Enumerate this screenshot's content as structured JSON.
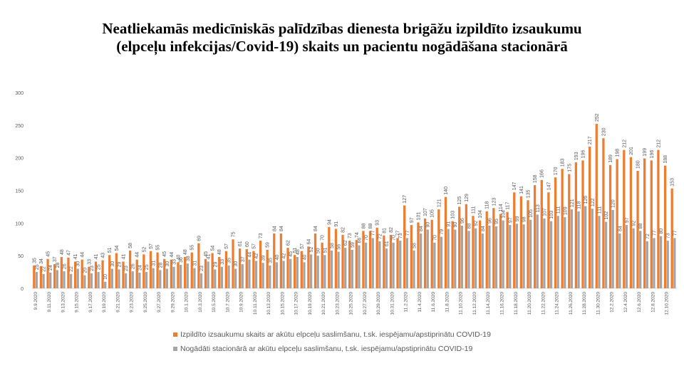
{
  "chart_data": {
    "type": "bar",
    "title": [
      "Neatliekamās medicīniskās palīdzības dienesta brigāžu izpildīto izsaukumu",
      "(elpceļu infekcijas/Covid-19) skaits un pacientu nogādāšana stacionārā"
    ],
    "categories": [
      "9.9.2020",
      null,
      "9.11.2020",
      null,
      "9.13.2020",
      null,
      "9.15.2020",
      null,
      "9.17.2020",
      null,
      "9.19.2020",
      null,
      "9.21.2020",
      null,
      "9.23.2020",
      null,
      "9.25.2020",
      null,
      "9.27.2020",
      null,
      "9.29.2020",
      null,
      "10.1.2020",
      null,
      "10.3.2020",
      null,
      "10.5.2020",
      null,
      "10.7.2020",
      null,
      "10.9.2020",
      null,
      "10.11.2020",
      null,
      "10.13.2020",
      null,
      "10.15.2020",
      null,
      "10.17.2020",
      null,
      "10.19.2020",
      null,
      "10.21.2020",
      null,
      "10.23.2020",
      null,
      "10.25.2020",
      null,
      "10.27.2020",
      null,
      "10.29.2020",
      null,
      "10.31.2020",
      null,
      "11.2.2020",
      null,
      "11.4.2020",
      null,
      "11.6.2020",
      null,
      "11.8.2020",
      null,
      "11.10.2020",
      null,
      "11.12.2020",
      null,
      "11.14.2020",
      null,
      "11.16.2020",
      null,
      "11.18.2020",
      null,
      "11.20.2020",
      null,
      "11.22.2020",
      null,
      "11.24.2020",
      null,
      "11.26.2020",
      null,
      "11.28.2020",
      null,
      "11.30.2020",
      null,
      "12.2.2020",
      null,
      "12.4.2020",
      null,
      "12.6.2020",
      null,
      "12.8.2020",
      null,
      "12.10.2020",
      null
    ],
    "series": [
      {
        "name": "Izpildīto izsaukumu skaits ar akūtu elpceļu saslimšanu, t.sk. iespējamu/apstiprinātu COVID-19",
        "color": "#ed7d31",
        "values": [
          35,
          34,
          45,
          37,
          48,
          47,
          41,
          44,
          33,
          41,
          43,
          51,
          54,
          41,
          58,
          44,
          52,
          57,
          55,
          45,
          44,
          40,
          48,
          55,
          69,
          45,
          54,
          48,
          57,
          75,
          61,
          60,
          57,
          73,
          59,
          84,
          84,
          62,
          51,
          57,
          64,
          84,
          70,
          94,
          91,
          82,
          73,
          74,
          88,
          88,
          93,
          81,
          82,
          77,
          127,
          97,
          101,
          107,
          105,
          121,
          140,
          103,
          125,
          129,
          111,
          104,
          118,
          123,
          114,
          117,
          147,
          141,
          135,
          158,
          166,
          147,
          170,
          183,
          175,
          193,
          196,
          217,
          252,
          230,
          189,
          198,
          212,
          201,
          180,
          199,
          196,
          212,
          188,
          153
        ]
      },
      {
        "name": "Nogādāti stacionārā ar akūtu elpceļu saslimšanu, t.sk. iespējamu/apstiprinātu COVID-19",
        "color": "#a5a5a5",
        "values": [
          25,
          22,
          24,
          28,
          26,
          22,
          30,
          20,
          23,
          25,
          10,
          30,
          29,
          23,
          26,
          24,
          25,
          31,
          28,
          30,
          33,
          36,
          38,
          31,
          23,
          41,
          29,
          33,
          35,
          30,
          37,
          44,
          42,
          39,
          35,
          40,
          42,
          45,
          48,
          40,
          52,
          50,
          51,
          58,
          56,
          62,
          59,
          66,
          70,
          77,
          72,
          61,
          70,
          73,
          77,
          58,
          84,
          90,
          70,
          79,
          91,
          90,
          96,
          88,
          92,
          84,
          96,
          95,
          104,
          97,
          99,
          98,
          105,
          113,
          107,
          103,
          111,
          109,
          121,
          118,
          126,
          122,
          111,
          102,
          120,
          84,
          97,
          92,
          88,
          72,
          77,
          80,
          73,
          77
        ]
      }
    ],
    "ylim": [
      0,
      300
    ],
    "yticks": [
      0,
      50,
      100,
      150,
      200,
      250,
      300
    ],
    "grid": false
  }
}
